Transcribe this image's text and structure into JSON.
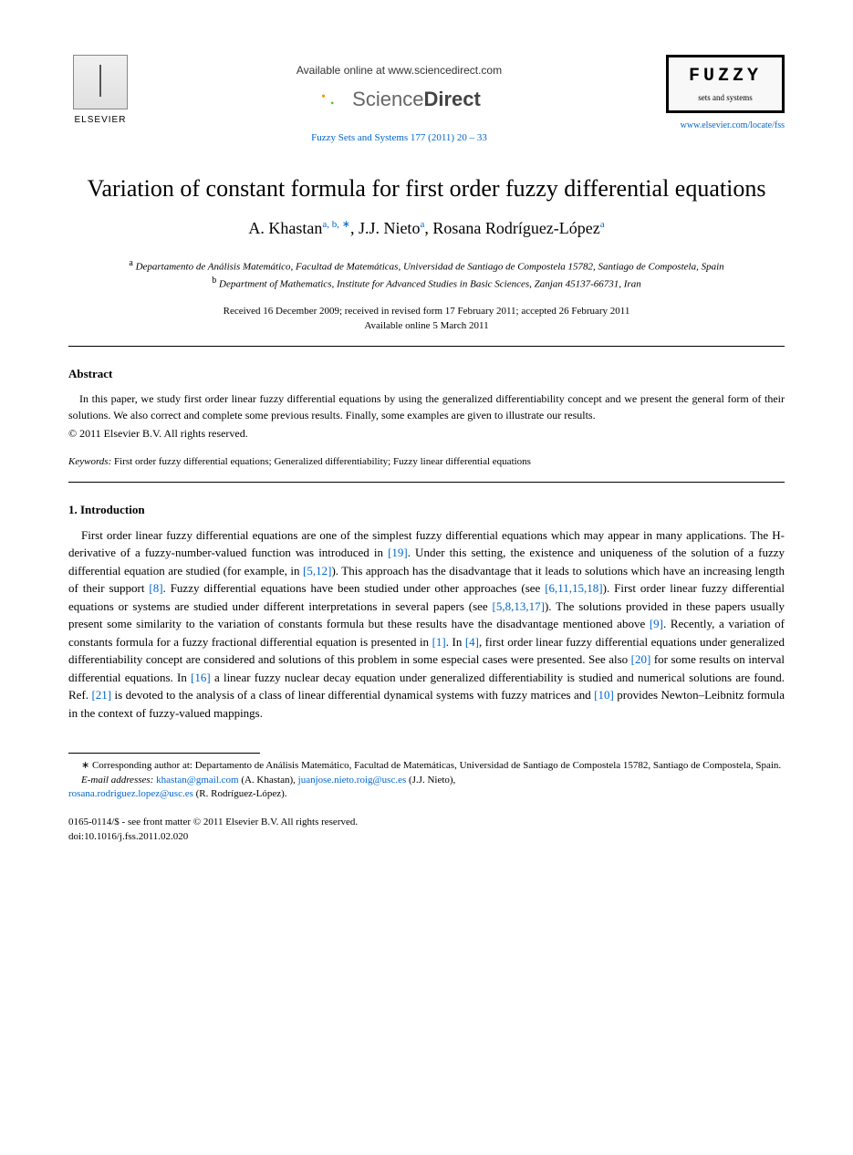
{
  "header": {
    "elsevier": "ELSEVIER",
    "available_online": "Available online at www.sciencedirect.com",
    "sciencedirect_science": "Science",
    "sciencedirect_direct": "Direct",
    "journal_ref": "Fuzzy Sets and Systems  177 (2011) 20 – 33",
    "fuzzy_title": "FUZZY",
    "fuzzy_sub": "sets and systems",
    "journal_url": "www.elsevier.com/locate/fss"
  },
  "paper": {
    "title": "Variation of constant formula for first order fuzzy differential equations",
    "authors_html": "A. Khastan",
    "author1_sup": "a, b, ∗",
    "author2": ", J.J. Nieto",
    "author2_sup": "a",
    "author3": ", Rosana Rodríguez-López",
    "author3_sup": "a",
    "affil_a_sup": "a",
    "affil_a": " Departamento de Análisis Matemático, Facultad de Matemáticas, Universidad de Santiago de Compostela 15782, Santiago de Compostela, Spain",
    "affil_b_sup": "b",
    "affil_b": " Department of Mathematics, Institute for Advanced Studies in Basic Sciences, Zanjan 45137-66731, Iran",
    "received": "Received 16 December 2009; received in revised form 17 February 2011; accepted 26 February 2011",
    "available": "Available online 5 March 2011"
  },
  "abstract": {
    "heading": "Abstract",
    "text": "In this paper, we study first order linear fuzzy differential equations by using the generalized differentiability concept and we present the general form of their solutions. We also correct and complete some previous results. Finally, some examples are given to illustrate our results.",
    "copyright": "© 2011 Elsevier B.V. All rights reserved."
  },
  "keywords": {
    "label": "Keywords:",
    "text": " First order fuzzy differential equations; Generalized differentiability; Fuzzy linear differential equations"
  },
  "introduction": {
    "heading": "1.  Introduction",
    "p1_a": "First order linear fuzzy differential equations are one of the simplest fuzzy differential equations which may appear in many applications. The H-derivative of a fuzzy-number-valued function was introduced in ",
    "r1": "[19]",
    "p1_b": ". Under this setting, the existence and uniqueness of the solution of a fuzzy differential equation are studied (for example, in ",
    "r2": "[5,12]",
    "p1_c": "). This approach has the disadvantage that it leads to solutions which have an increasing length of their support ",
    "r3": "[8]",
    "p1_d": ". Fuzzy differential equations have been studied under other approaches (see ",
    "r4": "[6,11,15,18]",
    "p1_e": "). First order linear fuzzy differential equations or systems are studied under different interpretations in several papers (see ",
    "r5": "[5,8,13,17]",
    "p1_f": "). The solutions provided in these papers usually present some similarity to the variation of constants formula but these results have the disadvantage mentioned above ",
    "r6": "[9]",
    "p1_g": ". Recently, a variation of constants formula for a fuzzy fractional differential equation is presented in ",
    "r7": "[1]",
    "p1_h": ". In ",
    "r8": "[4]",
    "p1_i": ", first order linear fuzzy differential equations under generalized differentiability concept are considered and solutions of this problem in some especial cases were presented. See also ",
    "r9": "[20]",
    "p1_j": " for some results on interval differential equations. In ",
    "r10": "[16]",
    "p1_k": " a linear fuzzy nuclear decay equation under generalized differentiability is studied and numerical solutions are found. Ref. ",
    "r11": "[21]",
    "p1_l": " is devoted to the analysis of a class of linear differential dynamical systems with fuzzy matrices and ",
    "r12": "[10]",
    "p1_m": " provides Newton–Leibnitz formula in the context of fuzzy-valued mappings."
  },
  "footnote": {
    "corr_star": "∗",
    "corr_text": " Corresponding author at: Departamento de Análisis Matemático, Facultad de Matemáticas, Universidad de Santiago de Compostela 15782, Santiago de Compostela, Spain.",
    "email_label": "E-mail addresses:",
    "email1": "khastan@gmail.com",
    "email1_name": " (A. Khastan), ",
    "email2": "juanjose.nieto.roig@usc.es",
    "email2_name": " (J.J. Nieto),",
    "email3": "rosana.rodriguez.lopez@usc.es",
    "email3_name": " (R. Rodríguez-López)."
  },
  "bottom": {
    "front_matter": "0165-0114/$ - see front matter © 2011 Elsevier B.V. All rights reserved.",
    "doi": "doi:10.1016/j.fss.2011.02.020"
  },
  "colors": {
    "link": "#0066cc",
    "text": "#000000",
    "background": "#ffffff"
  }
}
